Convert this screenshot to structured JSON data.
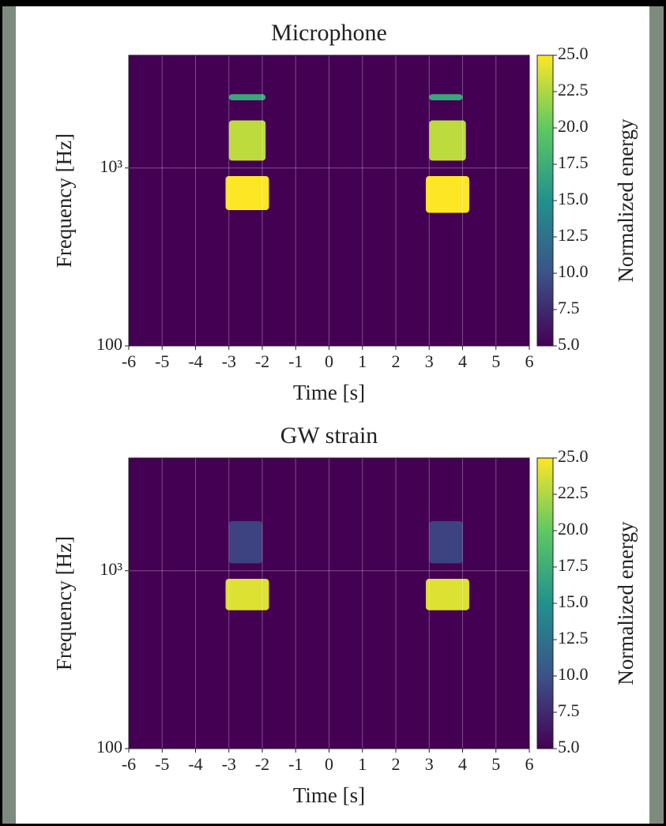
{
  "chart_data": [
    {
      "type": "spectrogram",
      "title": "Microphone",
      "xlabel": "Time [s]",
      "ylabel": "Frequency [Hz]",
      "xlim": [
        -6,
        6
      ],
      "xticks": [
        -6,
        -5,
        -4,
        -3,
        -2,
        -1,
        0,
        1,
        2,
        3,
        4,
        5,
        6
      ],
      "ylim": [
        100,
        4300
      ],
      "ylog": true,
      "yticks": [
        100,
        {
          "value": 1000,
          "label": "10³"
        }
      ],
      "grid": true,
      "colormap": [
        "#440154",
        "#3b528b",
        "#21918c",
        "#5ec962",
        "#fde725"
      ],
      "background_value": 5,
      "colorbar_label": "Normalized energy",
      "clim": [
        5,
        25
      ],
      "cticks": [
        {
          "value": 5,
          "label": "5.0"
        },
        7.5,
        {
          "value": 10,
          "label": "10.0"
        },
        12.5,
        {
          "value": 15,
          "label": "15.0"
        },
        17.5,
        {
          "value": 20,
          "label": "20.0"
        },
        22.5,
        {
          "value": 25,
          "label": "25.0"
        }
      ],
      "patches": [
        {
          "x": [
            -3.1,
            -1.8
          ],
          "y": [
            580,
            900
          ],
          "value": 25
        },
        {
          "x": [
            -3.0,
            -1.9
          ],
          "y": [
            1100,
            1850
          ],
          "value": 23
        },
        {
          "x": [
            -3.0,
            -1.9
          ],
          "y": [
            2400,
            2600
          ],
          "value": 17
        },
        {
          "x": [
            2.9,
            4.2
          ],
          "y": [
            560,
            900
          ],
          "value": 25
        },
        {
          "x": [
            3.0,
            4.1
          ],
          "y": [
            1100,
            1850
          ],
          "value": 23
        },
        {
          "x": [
            3.0,
            4.0
          ],
          "y": [
            2400,
            2600
          ],
          "value": 17
        }
      ]
    },
    {
      "type": "spectrogram",
      "title": "GW strain",
      "xlabel": "Time [s]",
      "ylabel": "Frequency [Hz]",
      "xlim": [
        -6,
        6
      ],
      "xticks": [
        -6,
        -5,
        -4,
        -3,
        -2,
        -1,
        0,
        1,
        2,
        3,
        4,
        5,
        6
      ],
      "ylim": [
        100,
        4300
      ],
      "ylog": true,
      "yticks": [
        100,
        {
          "value": 1000,
          "label": "10³"
        }
      ],
      "grid": true,
      "colormap": [
        "#440154",
        "#3b528b",
        "#21918c",
        "#5ec962",
        "#fde725"
      ],
      "background_value": 5,
      "colorbar_label": "Normalized energy",
      "clim": [
        5,
        25
      ],
      "cticks": [
        {
          "value": 5,
          "label": "5.0"
        },
        7.5,
        {
          "value": 10,
          "label": "10.0"
        },
        12.5,
        {
          "value": 15,
          "label": "15.0"
        },
        17.5,
        {
          "value": 20,
          "label": "20.0"
        },
        22.5,
        {
          "value": 25,
          "label": "25.0"
        }
      ],
      "patches": [
        {
          "x": [
            -3.1,
            -1.8
          ],
          "y": [
            600,
            900
          ],
          "value": 24
        },
        {
          "x": [
            -3.0,
            -2.0
          ],
          "y": [
            1100,
            1900
          ],
          "value": 9
        },
        {
          "x": [
            2.9,
            4.2
          ],
          "y": [
            600,
            900
          ],
          "value": 24
        },
        {
          "x": [
            3.0,
            4.0
          ],
          "y": [
            1100,
            1900
          ],
          "value": 9
        }
      ]
    }
  ]
}
